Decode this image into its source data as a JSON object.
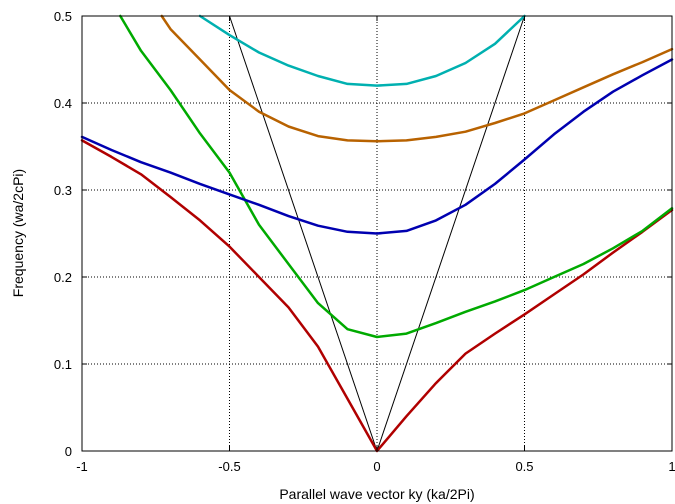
{
  "chart_data": {
    "type": "line",
    "title": "",
    "xlabel": "Parallel wave vector ky (ka/2Pi)",
    "ylabel": "Frequency (wa/2cPi)",
    "xlim": [
      -1,
      1
    ],
    "ylim": [
      0,
      0.5
    ],
    "xticks": [
      -1,
      -0.5,
      0,
      0.5,
      1
    ],
    "xtick_labels": [
      "-1",
      "-0.5",
      "0",
      "0.5",
      "1"
    ],
    "yticks": [
      0,
      0.1,
      0.2,
      0.3,
      0.4,
      0.5
    ],
    "ytick_labels": [
      "0",
      "0.1",
      "0.2",
      "0.3",
      "0.4",
      "0.5"
    ],
    "grid": "dotted",
    "light_lines": [
      {
        "color": "#000000",
        "x": [
          0,
          -0.5
        ],
        "y": [
          0,
          0.5
        ]
      },
      {
        "color": "#000000",
        "x": [
          0,
          0.5
        ],
        "y": [
          0,
          0.5
        ]
      }
    ],
    "series": [
      {
        "color": "#b00000",
        "x": [
          -1,
          -0.9,
          -0.8,
          -0.7,
          -0.6,
          -0.5,
          -0.4,
          -0.3,
          -0.2,
          -0.1,
          0,
          0.1,
          0.2,
          0.3,
          0.4,
          0.5,
          0.6,
          0.7,
          0.8,
          0.9,
          1
        ],
        "y": [
          0.357,
          0.338,
          0.318,
          0.292,
          0.265,
          0.235,
          0.2,
          0.165,
          0.12,
          0.06,
          0.0,
          0.04,
          0.078,
          0.112,
          0.135,
          0.157,
          0.18,
          0.203,
          0.228,
          0.252,
          0.277
        ]
      },
      {
        "color": "#00aa00",
        "x": [
          -0.87,
          -0.8,
          -0.7,
          -0.6,
          -0.5,
          -0.4,
          -0.3,
          -0.2,
          -0.1,
          0,
          0.1,
          0.2,
          0.3,
          0.4,
          0.5,
          0.6,
          0.7,
          0.8,
          0.9,
          1
        ],
        "y": [
          0.5,
          0.46,
          0.415,
          0.365,
          0.32,
          0.26,
          0.215,
          0.17,
          0.14,
          0.131,
          0.135,
          0.147,
          0.16,
          0.172,
          0.185,
          0.2,
          0.215,
          0.233,
          0.253,
          0.279
        ]
      },
      {
        "color": "#0000b0",
        "x": [
          -1,
          -0.9,
          -0.8,
          -0.7,
          -0.6,
          -0.5,
          -0.4,
          -0.3,
          -0.2,
          -0.1,
          0,
          0.1,
          0.2,
          0.3,
          0.4,
          0.5,
          0.6,
          0.7,
          0.8,
          0.9,
          1
        ],
        "y": [
          0.361,
          0.346,
          0.332,
          0.32,
          0.307,
          0.295,
          0.283,
          0.27,
          0.259,
          0.252,
          0.25,
          0.253,
          0.265,
          0.283,
          0.307,
          0.335,
          0.364,
          0.39,
          0.413,
          0.432,
          0.45
        ]
      },
      {
        "color": "#b86200",
        "x": [
          -0.73,
          -0.7,
          -0.6,
          -0.5,
          -0.4,
          -0.3,
          -0.2,
          -0.1,
          0,
          0.1,
          0.2,
          0.3,
          0.4,
          0.5,
          0.6,
          0.7,
          0.8,
          0.9,
          1
        ],
        "y": [
          0.5,
          0.485,
          0.45,
          0.415,
          0.39,
          0.373,
          0.362,
          0.357,
          0.356,
          0.357,
          0.361,
          0.367,
          0.377,
          0.388,
          0.403,
          0.418,
          0.433,
          0.447,
          0.462
        ]
      },
      {
        "color": "#00b0b0",
        "x": [
          -0.6,
          -0.5,
          -0.4,
          -0.3,
          -0.2,
          -0.1,
          0,
          0.1,
          0.2,
          0.3,
          0.4,
          0.5
        ],
        "y": [
          0.5,
          0.478,
          0.458,
          0.443,
          0.431,
          0.422,
          0.42,
          0.422,
          0.431,
          0.446,
          0.468,
          0.5
        ]
      }
    ]
  }
}
